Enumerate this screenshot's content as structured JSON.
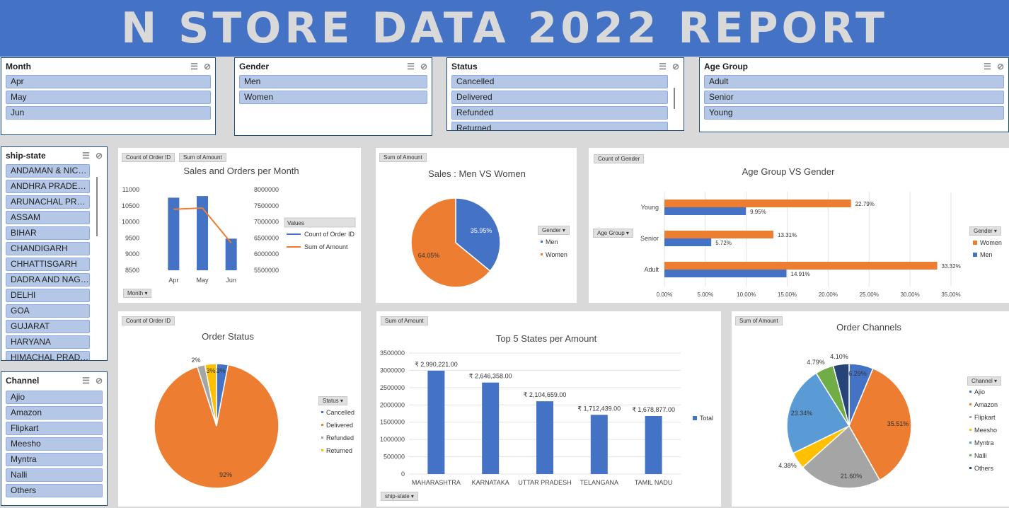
{
  "banner": {
    "title": "N STORE DATA 2022 REPORT"
  },
  "slicers": {
    "month": {
      "title": "Month",
      "items": [
        "Apr",
        "May",
        "Jun"
      ]
    },
    "gender": {
      "title": "Gender",
      "items": [
        "Men",
        "Women"
      ]
    },
    "status": {
      "title": "Status",
      "items": [
        "Cancelled",
        "Delivered",
        "Refunded",
        "Returned"
      ]
    },
    "age": {
      "title": "Age Group",
      "items": [
        "Adult",
        "Senior",
        "Young"
      ]
    },
    "state": {
      "title": "ship-state",
      "items": [
        "ANDAMAN & NICO...",
        "ANDHRA PRADESH",
        "ARUNACHAL PRAD...",
        "ASSAM",
        "BIHAR",
        "CHANDIGARH",
        "CHHATTISGARH",
        "DADRA AND NAGAR",
        "DELHI",
        "GOA",
        "GUJARAT",
        "HARYANA",
        "HIMACHAL PRADESH"
      ]
    },
    "channel": {
      "title": "Channel",
      "items": [
        "Ajio",
        "Amazon",
        "Flipkart",
        "Meesho",
        "Myntra",
        "Nalli",
        "Others"
      ]
    }
  },
  "icons": {
    "multiselect": "multi-select-icon",
    "clear": "clear-filter-icon",
    "dropdown": "dropdown-arrow-icon"
  },
  "colors": {
    "blue": "#4472c4",
    "orange": "#ed7d31",
    "gray": "#a5a5a5",
    "yellow": "#ffc000",
    "lightblue": "#5b9bd5",
    "green": "#70ad47",
    "navy": "#264478"
  },
  "chart_data": [
    {
      "id": "sales_orders",
      "type": "bar",
      "title": "Sales and Orders per Month",
      "buttons": [
        "Count of Order ID",
        "Sum of Amount"
      ],
      "axis_button": "Month",
      "legend_title": "Values",
      "categories": [
        "Apr",
        "May",
        "Jun"
      ],
      "series": [
        {
          "name": "Count of Order ID",
          "type": "bar",
          "values": [
            10750,
            10800,
            9480
          ],
          "axis": "left"
        },
        {
          "name": "Sum of Amount",
          "type": "line",
          "values": [
            7390000,
            7430000,
            6350000
          ],
          "axis": "right"
        }
      ],
      "y_left": {
        "min": 8500,
        "max": 11000,
        "ticks": [
          "8500",
          "9000",
          "9500",
          "10000",
          "10500",
          "11000"
        ]
      },
      "y_right": {
        "min": 5500000,
        "max": 8000000,
        "ticks": [
          "5500000",
          "6000000",
          "6500000",
          "7000000",
          "7500000",
          "8000000"
        ]
      }
    },
    {
      "id": "men_women",
      "type": "pie",
      "title": "Sales : Men VS Women",
      "button": "Sum of Amount",
      "legend_title": "Gender",
      "labels": [
        "Men",
        "Women"
      ],
      "values": [
        35.95,
        64.05
      ],
      "data_labels": [
        "35.95%",
        "64.05%"
      ]
    },
    {
      "id": "age_gender",
      "type": "bar",
      "orientation": "horizontal",
      "title": "Age Group VS Gender",
      "button": "Count of Gender",
      "axis_button": "Age Group",
      "legend_title": "Gender",
      "categories": [
        "Young",
        "Senior",
        "Adult"
      ],
      "series": [
        {
          "name": "Women",
          "values": [
            22.79,
            13.31,
            33.32
          ],
          "labels": [
            "22.79%",
            "13.31%",
            "33.32%"
          ]
        },
        {
          "name": "Men",
          "values": [
            9.95,
            5.72,
            14.91
          ],
          "labels": [
            "9.95%",
            "5.72%",
            "14.91%"
          ]
        }
      ],
      "xlim": [
        0,
        35
      ],
      "x_ticks": [
        "0.00%",
        "5.00%",
        "10.00%",
        "15.00%",
        "20.00%",
        "25.00%",
        "30.00%",
        "35.00%"
      ]
    },
    {
      "id": "order_status",
      "type": "pie",
      "title": "Order Status",
      "button": "Count of Order ID",
      "legend_title": "Status",
      "labels": [
        "Cancelled",
        "Delivered",
        "Refunded",
        "Returned"
      ],
      "values": [
        3,
        92,
        2,
        3
      ],
      "data_labels": [
        "3%",
        "92%",
        "2%",
        "3%"
      ]
    },
    {
      "id": "top_states",
      "type": "bar",
      "title": "Top 5 States per Amount",
      "button": "Sum of Amount",
      "axis_button": "ship-state",
      "legend": [
        "Total"
      ],
      "categories": [
        "MAHARASHTRA",
        "KARNATAKA",
        "UTTAR PRADESH",
        "TELANGANA",
        "TAMIL NADU"
      ],
      "values": [
        2990221,
        2646358,
        2104659,
        1712439,
        1678877
      ],
      "data_labels": [
        "₹ 2,990,221.00",
        "₹ 2,646,358.00",
        "₹ 2,104,659.00",
        "₹ 1,712,439.00",
        "₹ 1,678,877.00"
      ],
      "ylim": [
        0,
        3500000
      ],
      "y_ticks": [
        "0",
        "500000",
        "1000000",
        "1500000",
        "2000000",
        "2500000",
        "3000000",
        "3500000"
      ]
    },
    {
      "id": "order_channels",
      "type": "pie",
      "title": "Order Channels",
      "button": "Sum of Amount",
      "legend_title": "Channel",
      "labels": [
        "Ajio",
        "Amazon",
        "Flipkart",
        "Meesho",
        "Myntra",
        "Nalli",
        "Others"
      ],
      "values": [
        6.29,
        35.51,
        21.6,
        4.38,
        23.34,
        4.79,
        4.1
      ],
      "data_labels": [
        "6.29%",
        "35.51%",
        "21.60%",
        "4.38%",
        "23.34%",
        "4.79%",
        "4.10%"
      ]
    }
  ]
}
